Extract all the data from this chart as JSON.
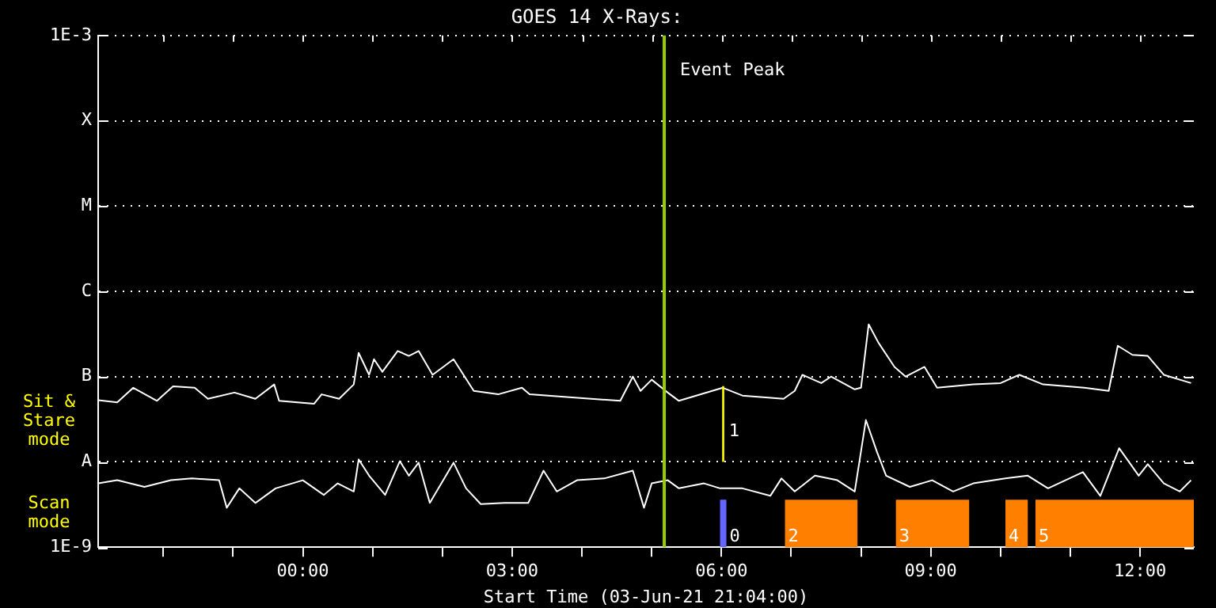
{
  "chart_data": {
    "type": "line",
    "title": "GOES 14 X-Rays:",
    "xlabel": "Start Time (03-Jun-21 21:04:00)",
    "xlim": [
      -2.933,
      12.77
    ],
    "xticks": [
      {
        "value": -2,
        "label": null
      },
      {
        "value": -1,
        "label": null
      },
      {
        "value": 0,
        "label": "00:00"
      },
      {
        "value": 1,
        "label": null
      },
      {
        "value": 2,
        "label": null
      },
      {
        "value": 3,
        "label": "03:00"
      },
      {
        "value": 4,
        "label": null
      },
      {
        "value": 5,
        "label": null
      },
      {
        "value": 6,
        "label": "06:00"
      },
      {
        "value": 7,
        "label": null
      },
      {
        "value": 8,
        "label": null
      },
      {
        "value": 9,
        "label": "09:00"
      },
      {
        "value": 10,
        "label": null
      },
      {
        "value": 11,
        "label": null
      },
      {
        "value": 12,
        "label": "12:00"
      }
    ],
    "ylim": [
      1e-09,
      0.001
    ],
    "log": true,
    "yticks": [
      {
        "value": 1e-09,
        "label": "1E-9"
      },
      {
        "value": 1e-08,
        "label": "A"
      },
      {
        "value": 1e-07,
        "label": "B"
      },
      {
        "value": 1e-06,
        "label": "C"
      },
      {
        "value": 1e-05,
        "label": "M"
      },
      {
        "value": 0.0001,
        "label": "X"
      },
      {
        "value": 0.001,
        "label": "1E-3"
      }
    ],
    "grid": "y",
    "marker": "none",
    "line_style": "solid",
    "series": [
      {
        "color": "#ffffff",
        "x": [
          -2.93,
          -2.66,
          -2.43,
          -2.09,
          -1.86,
          -1.55,
          -1.36,
          -0.98,
          -0.68,
          -0.41,
          -0.34,
          0.16,
          0.27,
          0.52,
          0.73,
          0.8,
          0.95,
          1.02,
          1.14,
          1.36,
          1.52,
          1.66,
          1.86,
          2.16,
          2.45,
          2.8,
          3.14,
          3.25,
          3.86,
          4.55,
          4.73,
          4.84,
          5.0,
          5.23,
          5.39,
          6.02,
          6.3,
          6.89,
          7.05,
          7.16,
          7.43,
          7.57,
          7.91,
          8.0,
          8.11,
          8.25,
          8.48,
          8.64,
          8.91,
          9.09,
          9.61,
          10.0,
          10.27,
          10.61,
          11.2,
          11.55,
          11.68,
          11.89,
          12.11,
          12.34,
          12.73
        ],
        "values": [
          5.3e-08,
          5e-08,
          7.4e-08,
          5.2e-08,
          7.7e-08,
          7.4e-08,
          5.5e-08,
          6.5e-08,
          5.5e-08,
          8.1e-08,
          5.2e-08,
          4.8e-08,
          6.2e-08,
          5.5e-08,
          8.1e-08,
          1.9e-07,
          1.05e-07,
          1.6e-07,
          1.14e-07,
          2e-07,
          1.75e-07,
          2e-07,
          1.05e-07,
          1.6e-07,
          6.8e-08,
          6.2e-08,
          7.4e-08,
          6.2e-08,
          5.7e-08,
          5.2e-08,
          1e-07,
          6.8e-08,
          9.2e-08,
          6.5e-08,
          5.2e-08,
          7.4e-08,
          6e-08,
          5.5e-08,
          6.8e-08,
          1.05e-07,
          8.4e-08,
          1e-07,
          7.1e-08,
          7.4e-08,
          4.1e-07,
          2.5e-07,
          1.3e-07,
          1e-07,
          1.3e-07,
          7.4e-08,
          8.1e-08,
          8.4e-08,
          1.05e-07,
          8.1e-08,
          7.4e-08,
          6.8e-08,
          2.3e-07,
          1.8e-07,
          1.75e-07,
          1.05e-07,
          8.4e-08
        ]
      },
      {
        "color": "#ffffff",
        "x": [
          -2.93,
          -2.66,
          -2.27,
          -1.89,
          -1.59,
          -1.2,
          -1.09,
          -0.91,
          -0.68,
          -0.39,
          0,
          0.3,
          0.5,
          0.73,
          0.8,
          0.95,
          1.18,
          1.39,
          1.52,
          1.66,
          1.82,
          2.16,
          2.34,
          2.55,
          2.89,
          3.23,
          3.45,
          3.64,
          3.93,
          4.32,
          4.73,
          4.89,
          5.0,
          5.23,
          5.39,
          5.75,
          5.98,
          6.3,
          6.7,
          6.86,
          7.05,
          7.34,
          7.66,
          7.91,
          8.07,
          8.23,
          8.36,
          8.7,
          9.02,
          9.32,
          9.61,
          10.07,
          10.39,
          10.68,
          11.18,
          11.43,
          11.7,
          11.98,
          12.11,
          12.34,
          12.57,
          12.73
        ],
        "values": [
          5.6e-09,
          6.1e-09,
          5.1e-09,
          6.1e-09,
          6.4e-09,
          6.1e-09,
          2.9e-09,
          4.9e-09,
          3.3e-09,
          4.9e-09,
          6.1e-09,
          4.1e-09,
          5.6e-09,
          4.5e-09,
          1.07e-08,
          6.9e-09,
          4.1e-09,
          1.02e-08,
          6.9e-09,
          9.8e-09,
          3.3e-09,
          9.8e-09,
          4.9e-09,
          3.2e-09,
          3.3e-09,
          3.3e-09,
          7.9e-09,
          4.5e-09,
          6.1e-09,
          6.4e-09,
          7.9e-09,
          2.9e-09,
          5.6e-09,
          6.1e-09,
          4.9e-09,
          5.6e-09,
          4.9e-09,
          4.9e-09,
          4e-09,
          6.4e-09,
          4.5e-09,
          6.9e-09,
          6.1e-09,
          4.5e-09,
          3.1e-08,
          1.3e-08,
          6.9e-09,
          5.1e-09,
          6.1e-09,
          4.5e-09,
          5.6e-09,
          6.4e-09,
          6.9e-09,
          4.9e-09,
          7.6e-09,
          4e-09,
          1.45e-08,
          6.9e-09,
          9.4e-09,
          5.6e-09,
          4.5e-09,
          6.1e-09
        ]
      }
    ],
    "ref_lines": [
      {
        "axis": "x",
        "value": 5.18,
        "label": "Event Peak",
        "color": "#99cc00"
      }
    ],
    "bands": [
      {
        "axis": "x",
        "from": 5.98,
        "to": 6.07,
        "label": "0",
        "color": "#6666ff"
      },
      {
        "axis": "x",
        "from": 6.01,
        "to": 6.04,
        "label": "1",
        "color": "#ffff00"
      },
      {
        "axis": "x",
        "from": 6.91,
        "to": 7.95,
        "label": "2",
        "color": "#ff8000"
      },
      {
        "axis": "x",
        "from": 8.5,
        "to": 9.55,
        "label": "3",
        "color": "#ff8000"
      },
      {
        "axis": "x",
        "from": 10.07,
        "to": 10.39,
        "label": "4",
        "color": "#ff8000"
      },
      {
        "axis": "x",
        "from": 10.5,
        "to": 12.77,
        "label": "5",
        "color": "#ff8000"
      }
    ],
    "annotations": [
      "Sit & Stare mode",
      "Scan mode"
    ]
  }
}
